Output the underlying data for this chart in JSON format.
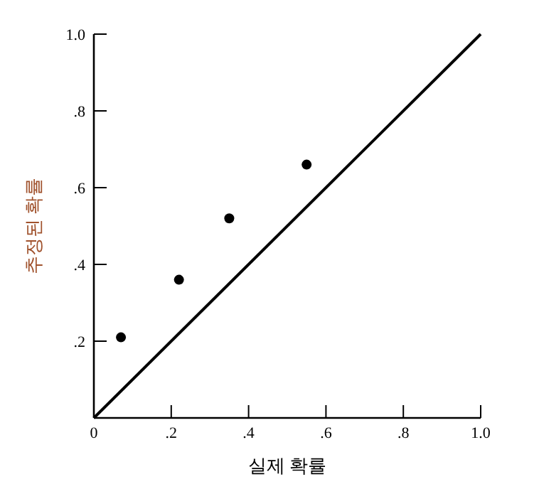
{
  "chart_data": {
    "type": "scatter",
    "xlabel": "실제 확률",
    "ylabel": "추정된 확률",
    "xlim": [
      0,
      1
    ],
    "ylim": [
      0,
      1
    ],
    "xticks": [
      {
        "value": 0,
        "label": "0"
      },
      {
        "value": 0.2,
        "label": ".2"
      },
      {
        "value": 0.4,
        "label": ".4"
      },
      {
        "value": 0.6,
        "label": ".6"
      },
      {
        "value": 0.8,
        "label": ".8"
      },
      {
        "value": 1,
        "label": "1.0"
      }
    ],
    "yticks": [
      {
        "value": 0.2,
        "label": ".2"
      },
      {
        "value": 0.4,
        "label": ".4"
      },
      {
        "value": 0.6,
        "label": ".6"
      },
      {
        "value": 0.8,
        "label": ".8"
      },
      {
        "value": 1,
        "label": "1.0"
      }
    ],
    "grid": false,
    "series": [
      {
        "marker": "circle",
        "color": "#000000",
        "x": [
          0.07,
          0.22,
          0.35,
          0.55
        ],
        "values": [
          0.21,
          0.36,
          0.52,
          0.66
        ]
      },
      {
        "type": "line",
        "color": "#000000",
        "x": [
          0,
          1
        ],
        "values": [
          0,
          1
        ],
        "marker": "none"
      }
    ]
  }
}
